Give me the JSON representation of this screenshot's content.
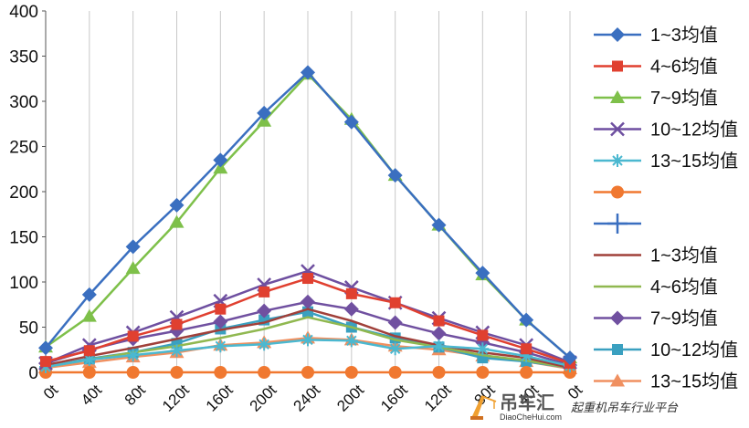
{
  "chart_data": {
    "type": "line",
    "title": "",
    "xlabel": "",
    "ylabel": "",
    "ylim": [
      0,
      400
    ],
    "yticks": [
      0,
      50,
      100,
      150,
      200,
      250,
      300,
      350,
      400
    ],
    "categories": [
      "0t",
      "40t",
      "80t",
      "120t",
      "160t",
      "200t",
      "240t",
      "200t",
      "160t",
      "120t",
      "80t",
      "40t",
      "0t"
    ],
    "grid": "vertical",
    "legend": "right",
    "series": [
      {
        "name": "1~3均值",
        "color": "#3a6fc0",
        "marker": "diamond",
        "values": [
          27,
          86,
          139,
          185,
          235,
          287,
          332,
          277,
          218,
          163,
          110,
          58,
          16
        ]
      },
      {
        "name": "4~6均值",
        "color": "#e04030",
        "marker": "square",
        "values": [
          12,
          24,
          40,
          53,
          70,
          89,
          104,
          87,
          77,
          57,
          41,
          26,
          10
        ]
      },
      {
        "name": "7~9均值",
        "color": "#7ec04a",
        "marker": "triangle",
        "values": [
          28,
          62,
          115,
          166,
          226,
          278,
          330,
          280,
          218,
          163,
          108,
          58,
          16
        ]
      },
      {
        "name": "10~12均值",
        "color": "#6e4fa0",
        "marker": "x",
        "values": [
          10,
          30,
          44,
          61,
          79,
          97,
          112,
          94,
          77,
          60,
          44,
          30,
          11
        ]
      },
      {
        "name": "13~15均值",
        "color": "#4bb8d0",
        "marker": "star",
        "values": [
          6,
          14,
          19,
          24,
          29,
          31,
          36,
          35,
          26,
          29,
          26,
          18,
          7
        ]
      },
      {
        "name": "",
        "color": "#f07830",
        "marker": "circle",
        "values": [
          0,
          0,
          0,
          0,
          0,
          0,
          0,
          0,
          0,
          0,
          0,
          0,
          0
        ]
      },
      {
        "name": "",
        "color": "#3a6fc0",
        "marker": "plus",
        "values": null
      },
      {
        "name": "1~3均值",
        "color": "#a0403a",
        "marker": "none",
        "values": [
          8,
          18,
          27,
          37,
          47,
          55,
          70,
          57,
          40,
          30,
          22,
          16,
          5
        ]
      },
      {
        "name": "4~6均值",
        "color": "#90b850",
        "marker": "none",
        "values": [
          6,
          14,
          22,
          29,
          38,
          48,
          61,
          50,
          36,
          28,
          19,
          13,
          5
        ]
      },
      {
        "name": "7~9均值",
        "color": "#7050a0",
        "marker": "diamond",
        "values": [
          10,
          25,
          37,
          46,
          56,
          68,
          78,
          70,
          55,
          43,
          33,
          22,
          8
        ]
      },
      {
        "name": "10~12均值",
        "color": "#3aa0c0",
        "marker": "square",
        "values": [
          6,
          15,
          22,
          32,
          48,
          58,
          67,
          50,
          38,
          28,
          16,
          12,
          5
        ]
      },
      {
        "name": "13~15均值",
        "color": "#f09060",
        "marker": "triangle",
        "values": [
          5,
          11,
          17,
          22,
          30,
          33,
          38,
          36,
          29,
          25,
          18,
          12,
          4
        ]
      }
    ]
  },
  "watermark": {
    "brand": "吊车汇",
    "url": "DiaoCheHui.com",
    "slogan": "起重机吊车行业平台"
  }
}
